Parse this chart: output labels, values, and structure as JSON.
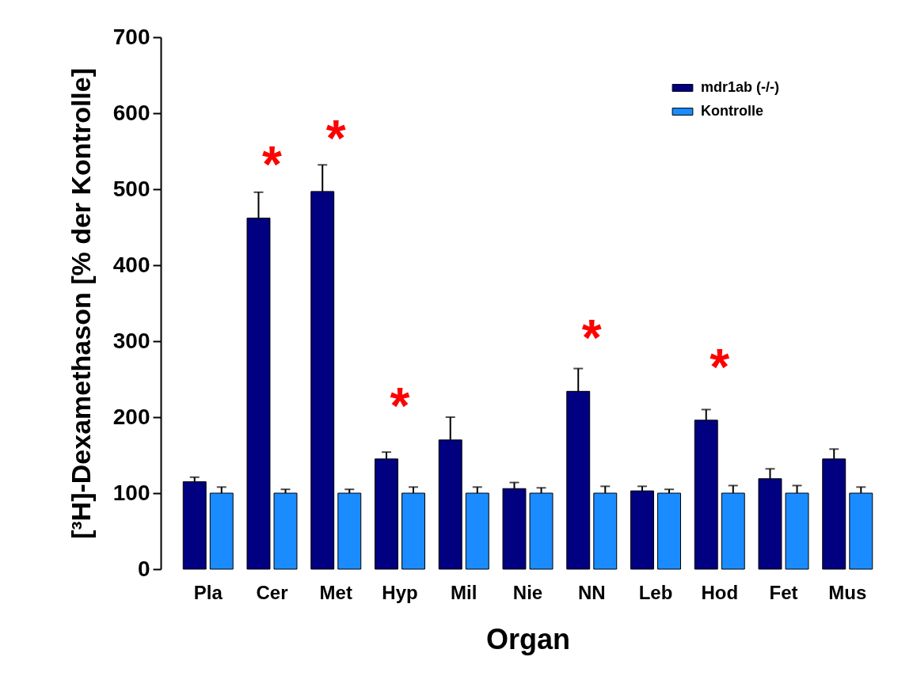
{
  "chart_data": {
    "type": "bar",
    "xlabel": "Organ",
    "ylabel": "[³H]-Dexamethason [% der Kontrolle]",
    "categories": [
      "Pla",
      "Cer",
      "Met",
      "Hyp",
      "Mil",
      "Nie",
      "NN",
      "Leb",
      "Hod",
      "Fet",
      "Mus"
    ],
    "series": [
      {
        "name": "mdr1ab (-/-)",
        "color": "#000080",
        "values": [
          115,
          462,
          497,
          145,
          170,
          106,
          234,
          103,
          196,
          119,
          145
        ],
        "errors": [
          6,
          34,
          35,
          9,
          30,
          8,
          30,
          6,
          14,
          13,
          13
        ]
      },
      {
        "name": "Kontrolle",
        "color": "#1a8cff",
        "values": [
          100,
          100,
          100,
          100,
          100,
          100,
          100,
          100,
          100,
          100,
          100
        ],
        "errors": [
          8,
          5,
          5,
          8,
          8,
          7,
          9,
          5,
          10,
          10,
          8
        ]
      }
    ],
    "ylim": [
      0,
      700
    ],
    "yticks": [
      0,
      100,
      200,
      300,
      400,
      500,
      600,
      700
    ],
    "grid": false,
    "legend": "top right",
    "annotations": [
      {
        "text": "*",
        "x": "Cer",
        "y": 462
      },
      {
        "text": "*",
        "x": "Met",
        "y": 497
      },
      {
        "text": "*",
        "x": "Hyp",
        "y": 145
      },
      {
        "text": "*",
        "x": "NN",
        "y": 234
      },
      {
        "text": "*",
        "x": "Hod",
        "y": 196
      }
    ]
  }
}
